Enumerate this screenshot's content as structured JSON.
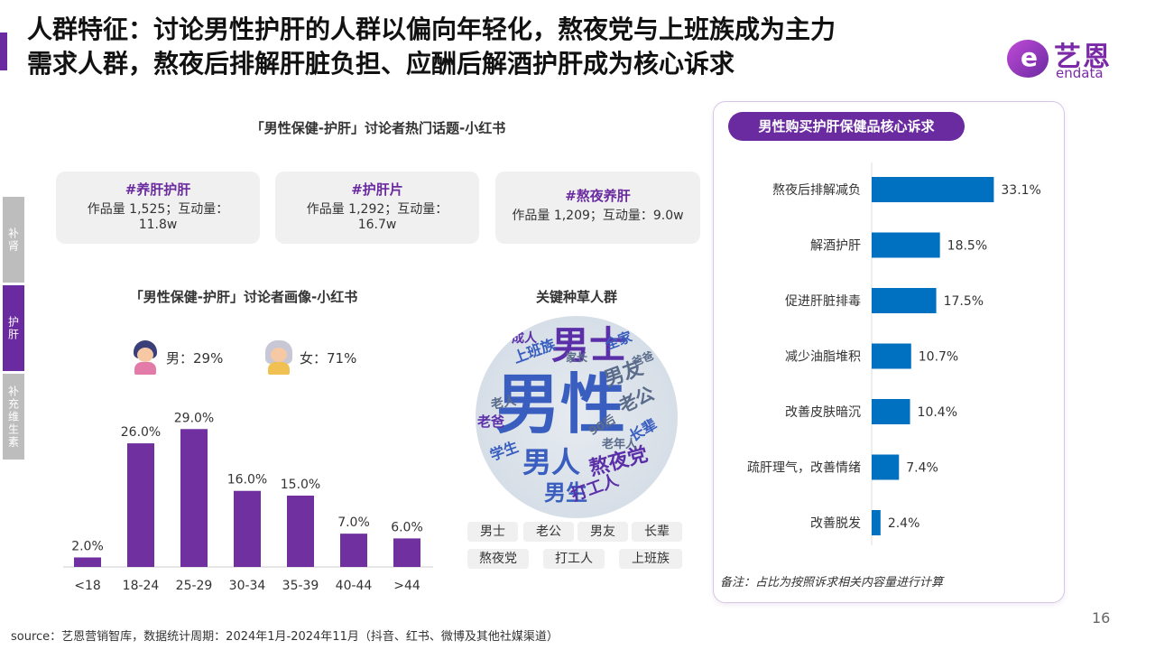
{
  "title": {
    "line1": "人群特征：讨论男性护肝的人群以偏向年轻化，熬夜党与上班族成为主力",
    "line2": "需求人群，熬夜后排解肝脏负担、应酬后解酒护肝成为核心诉求"
  },
  "logo": {
    "mark": "e",
    "cn": "艺恩",
    "en": "endata"
  },
  "side_tabs": [
    "补肾",
    "护肝",
    "补充维生素"
  ],
  "topics_section": {
    "title": "「男性保健-护肝」讨论者热门话题-小红书",
    "cards": [
      {
        "tag": "#养肝护肝",
        "stat": "作品量 1,525；互动量：11.8w"
      },
      {
        "tag": "#护肝片",
        "stat": "作品量 1,292；互动量：16.7w"
      },
      {
        "tag": "#熬夜养肝",
        "stat": "作品量 1,209；互动量：9.0w"
      }
    ]
  },
  "portrait_section": {
    "title": "「男性保健-护肝」讨论者画像-小红书",
    "male": "男：29%",
    "female": "女：71%"
  },
  "keyword_section": {
    "title": "关键种草人群",
    "cloud": [
      {
        "text": "男性",
        "color": "#3a5ec0"
      },
      {
        "text": "男士",
        "color": "#5b2fa8"
      },
      {
        "text": "男人",
        "color": "#3a5ec0"
      },
      {
        "text": "男友",
        "color": "#5b6b8a"
      },
      {
        "text": "熬夜党",
        "color": "#5b2fa8"
      },
      {
        "text": "男生",
        "color": "#3a5ec0"
      },
      {
        "text": "老公",
        "color": "#5b6b8a"
      },
      {
        "text": "上班族",
        "color": "#3a5ec0"
      },
      {
        "text": "打工人",
        "color": "#5b2fa8"
      },
      {
        "text": "学生",
        "color": "#3a5ec0"
      },
      {
        "text": "成人",
        "color": "#5b2fa8"
      },
      {
        "text": "老爸",
        "color": "#5b2fa8"
      },
      {
        "text": "长辈",
        "color": "#3a5ec0"
      },
      {
        "text": "老年人",
        "color": "#5b6b8a"
      },
      {
        "text": "全家",
        "color": "#3a5ec0"
      },
      {
        "text": "爸爸",
        "color": "#5b6b8a"
      },
      {
        "text": "90后",
        "color": "#5b6b8a"
      },
      {
        "text": "老人",
        "color": "#5b6b8a"
      },
      {
        "text": "家长",
        "color": "#5b6b8a"
      }
    ],
    "chips": [
      "男士",
      "老公",
      "男友",
      "长辈",
      "熬夜党",
      "打工人",
      "上班族"
    ]
  },
  "right_panel": {
    "title": "男性购买护肝保健品核心诉求",
    "note": "备注：占比为按照诉求相关内容量进行计算"
  },
  "page_number": "16",
  "source": "source：艺恩营销智库，数据统计周期：2024年1月-2024年11月（抖音、红书、微博及其他社媒渠道）",
  "colors": {
    "purple": "#6a2aa0",
    "bar_purple": "#7030a0",
    "bar_blue": "#0070c0"
  },
  "chart_data": [
    {
      "type": "bar",
      "categories": [
        "<18",
        "18-24",
        "25-29",
        "30-34",
        "35-39",
        "40-44",
        ">44"
      ],
      "values": [
        2.0,
        26.0,
        29.0,
        16.0,
        15.0,
        7.0,
        6.0
      ],
      "data_labels": [
        "2.0%",
        "26.0%",
        "29.0%",
        "16.0%",
        "15.0%",
        "7.0%",
        "6.0%"
      ],
      "ylim": [
        0,
        30
      ],
      "title": "",
      "xlabel": "",
      "ylabel": ""
    },
    {
      "type": "bar",
      "orientation": "horizontal",
      "categories": [
        "熬夜后排解减负",
        "解酒护肝",
        "促进肝脏排毒",
        "减少油脂堆积",
        "改善皮肤暗沉",
        "疏肝理气，改善情绪",
        "改善脱发"
      ],
      "values": [
        33.1,
        18.5,
        17.5,
        10.7,
        10.4,
        7.4,
        2.4
      ],
      "data_labels": [
        "33.1%",
        "18.5%",
        "17.5%",
        "10.7%",
        "10.4%",
        "7.4%",
        "2.4%"
      ],
      "xlim": [
        0,
        35
      ],
      "title": "",
      "xlabel": "",
      "ylabel": ""
    }
  ]
}
